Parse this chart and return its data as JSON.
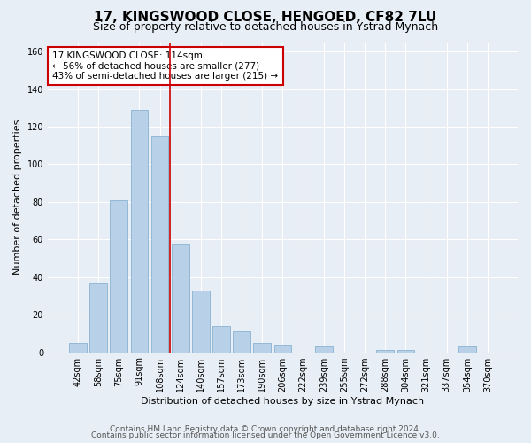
{
  "title": "17, KINGSWOOD CLOSE, HENGOED, CF82 7LU",
  "subtitle": "Size of property relative to detached houses in Ystrad Mynach",
  "xlabel": "Distribution of detached houses by size in Ystrad Mynach",
  "ylabel": "Number of detached properties",
  "categories": [
    "42sqm",
    "58sqm",
    "75sqm",
    "91sqm",
    "108sqm",
    "124sqm",
    "140sqm",
    "157sqm",
    "173sqm",
    "190sqm",
    "206sqm",
    "222sqm",
    "239sqm",
    "255sqm",
    "272sqm",
    "288sqm",
    "304sqm",
    "321sqm",
    "337sqm",
    "354sqm",
    "370sqm"
  ],
  "values": [
    5,
    37,
    81,
    129,
    115,
    58,
    33,
    14,
    11,
    5,
    4,
    0,
    3,
    0,
    0,
    1,
    1,
    0,
    0,
    3,
    0
  ],
  "bar_color": "#b8d0e8",
  "bar_edge_color": "#7aaacb",
  "vline_x": 4.5,
  "vline_color": "#cc0000",
  "annotation_text": "17 KINGSWOOD CLOSE: 114sqm\n← 56% of detached houses are smaller (277)\n43% of semi-detached houses are larger (215) →",
  "annotation_box_color": "#ffffff",
  "annotation_box_edge_color": "#cc0000",
  "ylim": [
    0,
    165
  ],
  "yticks": [
    0,
    20,
    40,
    60,
    80,
    100,
    120,
    140,
    160
  ],
  "footer_line1": "Contains HM Land Registry data © Crown copyright and database right 2024.",
  "footer_line2": "Contains public sector information licensed under the Open Government Licence v3.0.",
  "background_color": "#e8eef5",
  "plot_bg_color": "#e8eef5",
  "title_fontsize": 11,
  "subtitle_fontsize": 9,
  "axis_label_fontsize": 8,
  "tick_fontsize": 7,
  "footer_fontsize": 6.5,
  "annotation_fontsize": 7.5
}
